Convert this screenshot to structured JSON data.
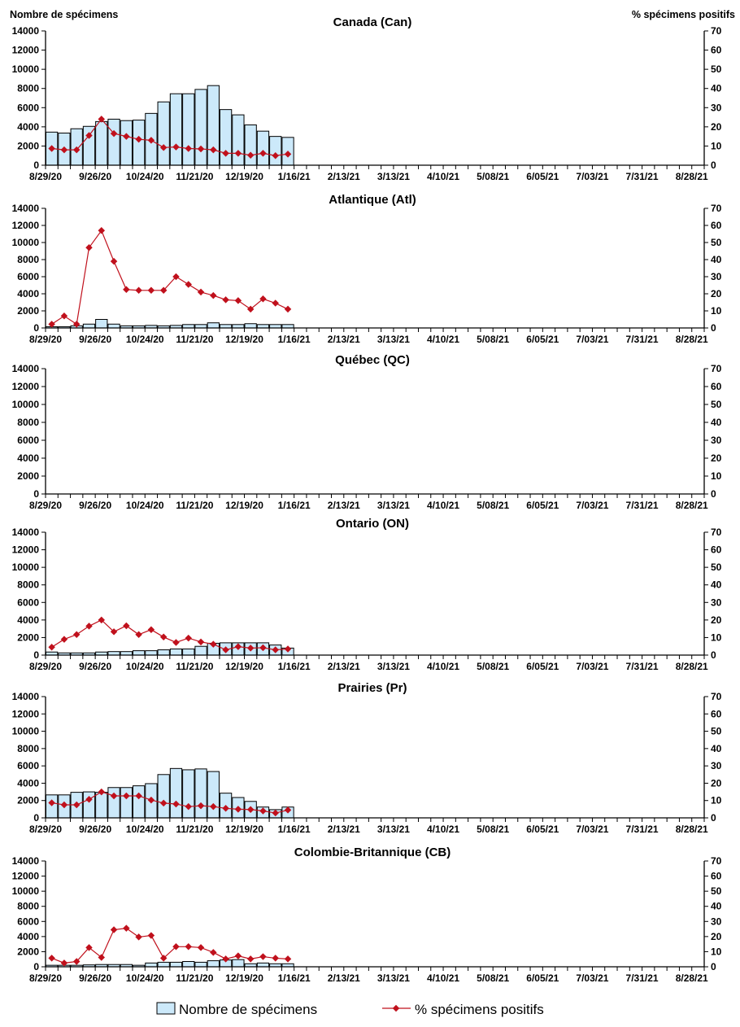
{
  "chart_data": {
    "type": "bar+line",
    "left_axis_label": "Nombre de spécimens",
    "right_axis_label": "% spécimens positifs",
    "left_ylim": [
      0,
      14000
    ],
    "left_ticks": [
      "0",
      "2000",
      "4000",
      "6000",
      "8000",
      "10000",
      "12000",
      "14000"
    ],
    "right_ylim": [
      0,
      70
    ],
    "right_ticks": [
      "0",
      "10",
      "20",
      "30",
      "40",
      "50",
      "60",
      "70"
    ],
    "x_tick_labels": [
      "8/29/20",
      "9/26/20",
      "10/24/20",
      "11/21/20",
      "12/19/20",
      "1/16/21",
      "2/13/21",
      "3/13/21",
      "4/10/21",
      "5/08/21",
      "6/05/21",
      "7/03/21",
      "7/31/21",
      "8/28/21"
    ],
    "weeks_total": 53,
    "colors": {
      "bar_fill": "#cce9fa",
      "bar_stroke": "#000000",
      "line": "#c0101c"
    },
    "legend": {
      "bar": "Nombre de spécimens",
      "line": "% spécimens positifs",
      "placement": "bottom-center"
    },
    "panels": [
      {
        "title": "Canada (Can)",
        "specimens": [
          3450,
          3350,
          3800,
          4050,
          4550,
          4800,
          4650,
          4700,
          5400,
          6600,
          7450,
          7450,
          7900,
          8300,
          5800,
          5250,
          4200,
          3550,
          3000,
          2900
        ],
        "pct_positive": [
          8.7,
          8.0,
          8.0,
          15.5,
          24.0,
          16.5,
          15.0,
          13.5,
          13.0,
          9.2,
          9.5,
          8.7,
          8.5,
          8.0,
          6.2,
          6.2,
          5.2,
          6.2,
          5.0,
          5.8
        ]
      },
      {
        "title": "Atlantique (Atl)",
        "specimens": [
          150,
          150,
          250,
          450,
          1000,
          450,
          250,
          250,
          300,
          250,
          300,
          400,
          400,
          600,
          400,
          400,
          500,
          400,
          400,
          400
        ],
        "pct_positive": [
          2.2,
          7.0,
          2.2,
          47.0,
          57.0,
          39.0,
          22.5,
          22.0,
          22.0,
          22.0,
          30.0,
          25.5,
          21.0,
          19.0,
          16.5,
          16.0,
          11.0,
          17.0,
          14.5,
          11.0
        ]
      },
      {
        "title": "Québec (QC)",
        "specimens": [],
        "pct_positive": []
      },
      {
        "title": "Ontario (ON)",
        "specimens": [
          350,
          250,
          250,
          250,
          350,
          400,
          400,
          500,
          500,
          600,
          700,
          700,
          1000,
          1350,
          1400,
          1400,
          1400,
          1400,
          1150,
          800
        ],
        "pct_positive": [
          4.5,
          9.0,
          11.7,
          16.5,
          20.0,
          13.3,
          16.7,
          11.7,
          14.5,
          10.3,
          7.2,
          9.7,
          7.5,
          6.2,
          3.0,
          4.8,
          4.0,
          4.2,
          3.0,
          3.5
        ]
      },
      {
        "title": "Prairies (Pr)",
        "specimens": [
          2650,
          2650,
          2950,
          3000,
          2950,
          3500,
          3500,
          3700,
          3950,
          5000,
          5700,
          5550,
          5650,
          5350,
          2850,
          2350,
          1900,
          1250,
          950,
          1250
        ],
        "pct_positive": [
          8.7,
          7.5,
          7.5,
          10.7,
          15.0,
          12.7,
          12.7,
          12.7,
          10.3,
          8.5,
          8.0,
          6.5,
          7.0,
          6.5,
          5.5,
          5.0,
          4.8,
          4.0,
          2.8,
          4.5
        ]
      },
      {
        "title": "Colombie-Britannique (CB)",
        "specimens": [
          200,
          200,
          200,
          250,
          300,
          300,
          300,
          200,
          500,
          600,
          600,
          700,
          600,
          800,
          900,
          950,
          400,
          500,
          400,
          400
        ],
        "pct_positive": [
          5.7,
          2.5,
          3.5,
          12.7,
          6.2,
          24.5,
          25.5,
          19.7,
          20.7,
          5.7,
          13.3,
          13.3,
          12.7,
          9.5,
          5.2,
          7.2,
          5.2,
          6.7,
          5.7,
          5.2
        ]
      }
    ]
  }
}
